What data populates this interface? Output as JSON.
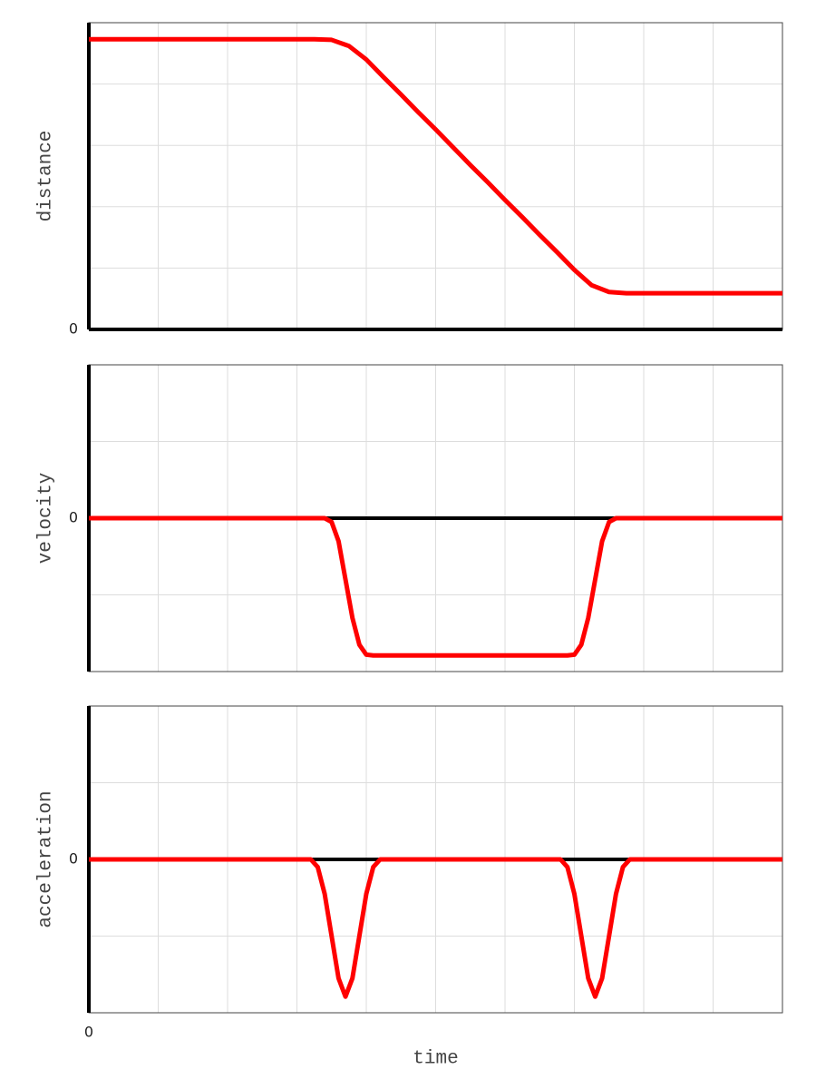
{
  "chart_data": [
    {
      "type": "line",
      "ylabel": "distance",
      "color": "#ff0000",
      "zero_line": true,
      "grid": true,
      "x": [
        0,
        3.25,
        3.5,
        3.75,
        4.0,
        4.25,
        4.5,
        4.75,
        5.0,
        5.25,
        5.5,
        5.75,
        6.0,
        6.25,
        6.5,
        6.75,
        7.0,
        7.25,
        7.5,
        7.75,
        10
      ],
      "values": [
        4.73,
        4.73,
        4.72,
        4.62,
        4.4,
        4.11,
        3.83,
        3.54,
        3.26,
        2.97,
        2.68,
        2.4,
        2.11,
        1.83,
        1.54,
        1.26,
        0.97,
        0.72,
        0.61,
        0.59,
        0.59
      ],
      "xlim": [
        0,
        10
      ],
      "xticks": [
        {
          "value": 0,
          "label": null
        },
        {
          "value": 1,
          "label": null
        },
        {
          "value": 2,
          "label": null
        },
        {
          "value": 3,
          "label": null
        },
        {
          "value": 4,
          "label": null
        },
        {
          "value": 5,
          "label": null
        },
        {
          "value": 6,
          "label": null
        },
        {
          "value": 7,
          "label": null
        },
        {
          "value": 8,
          "label": null
        },
        {
          "value": 9,
          "label": null
        },
        {
          "value": 10,
          "label": null
        }
      ],
      "ylim": [
        0,
        5
      ],
      "yticks": [
        0,
        {
          "value": 1,
          "label": null
        },
        {
          "value": 2,
          "label": null
        },
        {
          "value": 3,
          "label": null
        },
        {
          "value": 4,
          "label": null
        },
        {
          "value": 5,
          "label": null
        }
      ]
    },
    {
      "type": "line",
      "ylabel": "velocity",
      "color": "#ff0000",
      "zero_line": true,
      "grid": true,
      "x": [
        0,
        3.4,
        3.5,
        3.6,
        3.7,
        3.8,
        3.9,
        4.0,
        4.1,
        6.9,
        7.0,
        7.1,
        7.2,
        7.3,
        7.4,
        7.5,
        7.6,
        10
      ],
      "values": [
        0,
        0,
        -0.05,
        -0.3,
        -0.8,
        -1.3,
        -1.65,
        -1.78,
        -1.79,
        -1.79,
        -1.78,
        -1.65,
        -1.3,
        -0.8,
        -0.3,
        -0.05,
        0,
        0
      ],
      "xlim": [
        0,
        10
      ],
      "xticks": [
        {
          "value": 0,
          "label": null
        },
        {
          "value": 1,
          "label": null
        },
        {
          "value": 2,
          "label": null
        },
        {
          "value": 3,
          "label": null
        },
        {
          "value": 4,
          "label": null
        },
        {
          "value": 5,
          "label": null
        },
        {
          "value": 6,
          "label": null
        },
        {
          "value": 7,
          "label": null
        },
        {
          "value": 8,
          "label": null
        },
        {
          "value": 9,
          "label": null
        },
        {
          "value": 10,
          "label": null
        }
      ],
      "ylim": [
        -2,
        2
      ],
      "yticks": [
        {
          "value": -2,
          "label": null
        },
        {
          "value": -1,
          "label": null
        },
        0,
        {
          "value": 1,
          "label": null
        },
        {
          "value": 2,
          "label": null
        }
      ]
    },
    {
      "type": "line",
      "ylabel": "acceleration",
      "xlabel": "time",
      "color": "#ff0000",
      "zero_line": true,
      "grid": true,
      "x": [
        0,
        3.2,
        3.3,
        3.4,
        3.5,
        3.6,
        3.7,
        3.8,
        3.9,
        4.0,
        4.1,
        4.2,
        6.8,
        6.9,
        7.0,
        7.1,
        7.2,
        7.3,
        7.4,
        7.5,
        7.6,
        7.7,
        7.8,
        10
      ],
      "values": [
        0,
        0,
        -0.1,
        -0.45,
        -1.0,
        -1.55,
        -1.79,
        -1.55,
        -1.0,
        -0.45,
        -0.1,
        0,
        0,
        -0.1,
        -0.45,
        -1.0,
        -1.55,
        -1.79,
        -1.55,
        -1.0,
        -0.45,
        -0.1,
        0,
        0
      ],
      "xlim": [
        0,
        10
      ],
      "xticks": [
        0,
        {
          "value": 1,
          "label": null
        },
        {
          "value": 2,
          "label": null
        },
        {
          "value": 3,
          "label": null
        },
        {
          "value": 4,
          "label": null
        },
        {
          "value": 5,
          "label": null
        },
        {
          "value": 6,
          "label": null
        },
        {
          "value": 7,
          "label": null
        },
        {
          "value": 8,
          "label": null
        },
        {
          "value": 9,
          "label": null
        },
        {
          "value": 10,
          "label": null
        }
      ],
      "ylim": [
        -2,
        2
      ],
      "yticks": [
        {
          "value": -2,
          "label": null
        },
        {
          "value": -1,
          "label": null
        },
        0,
        {
          "value": 1,
          "label": null
        },
        {
          "value": 2,
          "label": null
        }
      ]
    }
  ]
}
